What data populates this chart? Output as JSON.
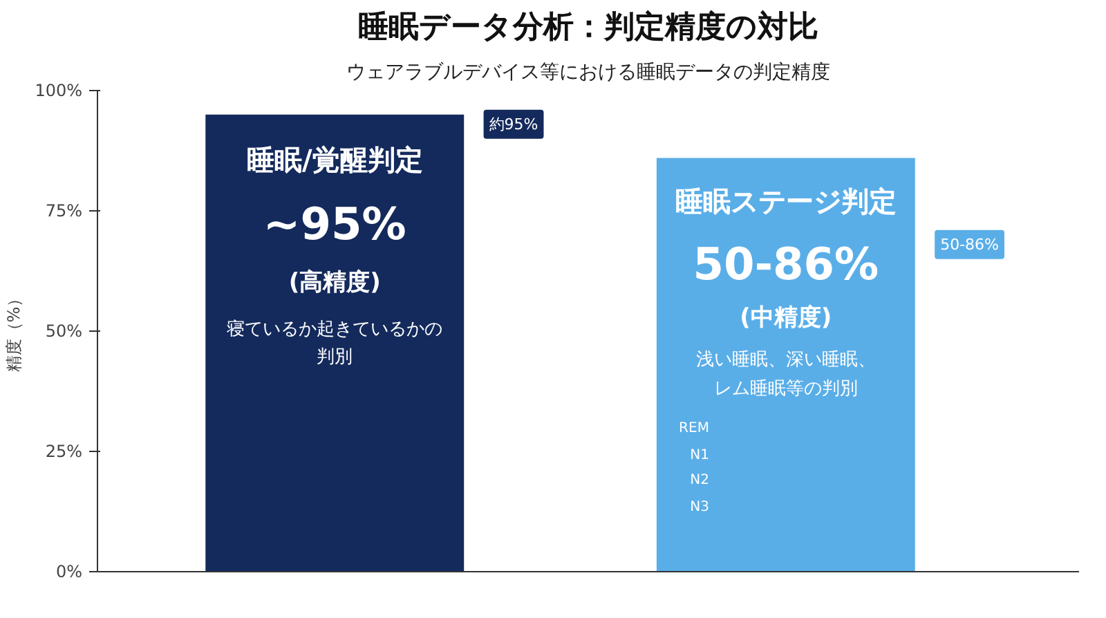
{
  "chart_data": {
    "type": "bar",
    "title": "睡眠データ分析：判定精度の対比",
    "subtitle": "ウェアラブルデバイス等における睡眠データの判定精度",
    "ylabel": "精度（%）",
    "categories": [
      null,
      null
    ],
    "values": [
      95,
      86
    ],
    "colors": [
      "#142a5c",
      "#5aaee8"
    ],
    "ylim": [
      0,
      100
    ],
    "yticks": [
      {
        "value": 0,
        "label": "0%"
      },
      {
        "value": 25,
        "label": "25%"
      },
      {
        "value": 50,
        "label": "50%"
      },
      {
        "value": 75,
        "label": "75%"
      },
      {
        "value": 100,
        "label": "100%"
      }
    ],
    "grid": false,
    "annotations": [
      "睡眠/覚醒判定",
      "~95%",
      "(高精度)",
      "寝ているか起きているかの",
      "判別",
      "睡眠ステージ判定",
      "50-86%",
      "(中精度)",
      "浅い睡眠、深い睡眠、",
      "レム睡眠等の判別",
      "REM",
      "N1",
      "N2",
      "N3",
      "約95%",
      "50-86%"
    ]
  }
}
